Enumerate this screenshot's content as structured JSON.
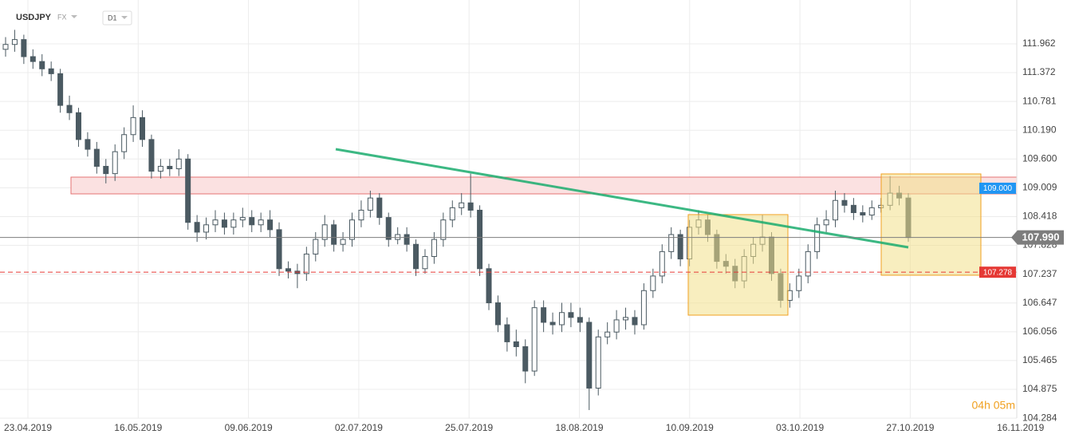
{
  "chart_data": {
    "type": "candlestick",
    "symbol": "USDJPY",
    "market": "FX",
    "interval": "D1",
    "countdown": "04h 05m",
    "ylim": [
      104.22,
      112.862
    ],
    "yticks": [
      111.962,
      111.372,
      110.781,
      {
        "value": 110.19,
        "label": "110.190"
      },
      {
        "value": 109.6,
        "label": "109.600"
      },
      109.009,
      108.418,
      107.828,
      107.237,
      106.647,
      106.056,
      105.465,
      104.875,
      104.284
    ],
    "xtick_labels": [
      "23.04.2019",
      "16.05.2019",
      "09.06.2019",
      "02.07.2019",
      "25.07.2019",
      "18.08.2019",
      "10.09.2019",
      "03.10.2019",
      "27.10.2019",
      "16.11.2019"
    ],
    "grid": true,
    "up_color": "#ffffff",
    "down_color": "#4b5a62",
    "outline_color": "#4b5a62",
    "price_lines": [
      {
        "value": 107.99,
        "label": "107.990",
        "color": "#7d7d7d",
        "style": "solid"
      },
      {
        "value": 109.0,
        "label": "109.000",
        "color": "#2196f3",
        "style": "none"
      },
      {
        "value": 107.278,
        "label": "107.278",
        "color": "#e53935",
        "style": "dashed"
      }
    ],
    "open": [
      111.85,
      111.95,
      112.05,
      111.7,
      111.6,
      111.45,
      111.35,
      110.7,
      110.55,
      110.0,
      109.8,
      109.45,
      109.3,
      109.75,
      110.1,
      110.45,
      110.0,
      109.35,
      109.45,
      109.4,
      109.6,
      108.3,
      108.1,
      108.25,
      108.35,
      108.2,
      108.35,
      108.4,
      108.25,
      108.35,
      108.15,
      107.35,
      107.3,
      107.25,
      107.65,
      107.95,
      108.25,
      107.85,
      107.95,
      108.35,
      108.55,
      108.8,
      108.4,
      107.95,
      108.05,
      107.85,
      107.35,
      107.6,
      107.95,
      108.35,
      108.6,
      108.7,
      108.55,
      107.35,
      106.65,
      106.2,
      105.85,
      105.75,
      105.25,
      106.55,
      106.25,
      106.2,
      106.45,
      106.35,
      106.25,
      104.9,
      105.95,
      106.05,
      106.3,
      106.35,
      106.2,
      106.9,
      107.2,
      107.7,
      108.05,
      107.55,
      108.2,
      108.35,
      108.05,
      107.5,
      107.4,
      107.1,
      107.6,
      107.85,
      108.0,
      107.25,
      106.7,
      106.9,
      107.2,
      107.7,
      108.25,
      108.35,
      108.75,
      108.65,
      108.5,
      108.45,
      108.6,
      108.65,
      108.9,
      108.8
    ],
    "high": [
      112.1,
      112.25,
      112.15,
      111.85,
      111.75,
      111.6,
      111.45,
      110.9,
      110.65,
      110.15,
      109.95,
      109.6,
      109.9,
      110.25,
      110.7,
      110.6,
      110.1,
      109.6,
      109.6,
      109.8,
      109.7,
      108.45,
      108.4,
      108.55,
      108.5,
      108.5,
      108.6,
      108.55,
      108.5,
      108.55,
      108.3,
      107.5,
      107.45,
      107.8,
      108.1,
      108.45,
      108.35,
      108.1,
      108.5,
      108.75,
      108.95,
      108.9,
      108.5,
      108.2,
      108.2,
      107.95,
      107.75,
      108.1,
      108.5,
      108.75,
      108.9,
      109.3,
      108.65,
      107.45,
      106.8,
      106.35,
      106.1,
      105.9,
      106.7,
      106.7,
      106.45,
      106.65,
      106.65,
      106.55,
      106.35,
      106.1,
      106.25,
      106.5,
      106.55,
      106.5,
      107.05,
      107.35,
      107.85,
      108.2,
      108.15,
      108.35,
      108.55,
      108.45,
      108.15,
      107.65,
      107.55,
      107.75,
      108.0,
      108.45,
      108.1,
      107.35,
      107.05,
      107.35,
      107.85,
      108.4,
      108.55,
      108.95,
      108.9,
      108.8,
      108.65,
      108.75,
      108.8,
      109.25,
      109.05,
      108.9
    ],
    "low": [
      111.7,
      111.8,
      111.55,
      111.45,
      111.3,
      111.2,
      110.55,
      110.4,
      109.85,
      109.65,
      109.3,
      109.1,
      109.15,
      109.6,
      109.95,
      109.85,
      109.2,
      109.2,
      109.25,
      109.25,
      108.15,
      107.9,
      107.95,
      108.1,
      108.05,
      108.05,
      108.2,
      108.1,
      108.1,
      108.0,
      107.2,
      107.15,
      106.95,
      107.1,
      107.5,
      107.8,
      107.7,
      107.7,
      107.8,
      108.2,
      108.4,
      108.25,
      107.8,
      107.85,
      107.7,
      107.2,
      107.25,
      107.45,
      107.8,
      108.2,
      108.45,
      108.4,
      107.2,
      106.5,
      106.05,
      105.65,
      105.55,
      105.0,
      105.15,
      106.05,
      106.0,
      106.05,
      106.15,
      106.05,
      104.45,
      104.75,
      105.8,
      105.9,
      106.1,
      106.0,
      106.1,
      106.75,
      107.05,
      107.55,
      107.4,
      107.4,
      108.05,
      107.9,
      107.35,
      107.25,
      106.95,
      106.95,
      107.45,
      107.7,
      107.1,
      106.55,
      106.55,
      106.75,
      107.05,
      107.55,
      108.1,
      108.2,
      108.5,
      108.35,
      108.3,
      108.35,
      108.5,
      108.55,
      108.65,
      107.9
    ],
    "close": [
      111.95,
      112.05,
      111.7,
      111.6,
      111.45,
      111.35,
      110.7,
      110.55,
      110.0,
      109.8,
      109.45,
      109.3,
      109.75,
      110.1,
      110.45,
      110.0,
      109.35,
      109.45,
      109.4,
      109.6,
      108.3,
      108.1,
      108.25,
      108.35,
      108.2,
      108.35,
      108.4,
      108.25,
      108.35,
      108.15,
      107.35,
      107.3,
      107.25,
      107.65,
      107.95,
      108.25,
      107.85,
      107.95,
      108.35,
      108.55,
      108.8,
      108.4,
      107.95,
      108.05,
      107.85,
      107.35,
      107.6,
      107.95,
      108.35,
      108.6,
      108.7,
      108.55,
      107.35,
      106.65,
      106.2,
      105.85,
      105.75,
      105.25,
      106.55,
      106.25,
      106.2,
      106.45,
      106.35,
      106.25,
      104.9,
      105.95,
      106.05,
      106.3,
      106.35,
      106.2,
      106.9,
      107.2,
      107.7,
      108.05,
      107.55,
      108.2,
      108.35,
      108.05,
      107.5,
      107.4,
      107.1,
      107.6,
      107.85,
      108.0,
      107.25,
      106.7,
      106.9,
      107.2,
      107.7,
      108.25,
      108.35,
      108.75,
      108.65,
      108.5,
      108.45,
      108.6,
      108.65,
      108.9,
      108.8,
      107.99
    ]
  }
}
